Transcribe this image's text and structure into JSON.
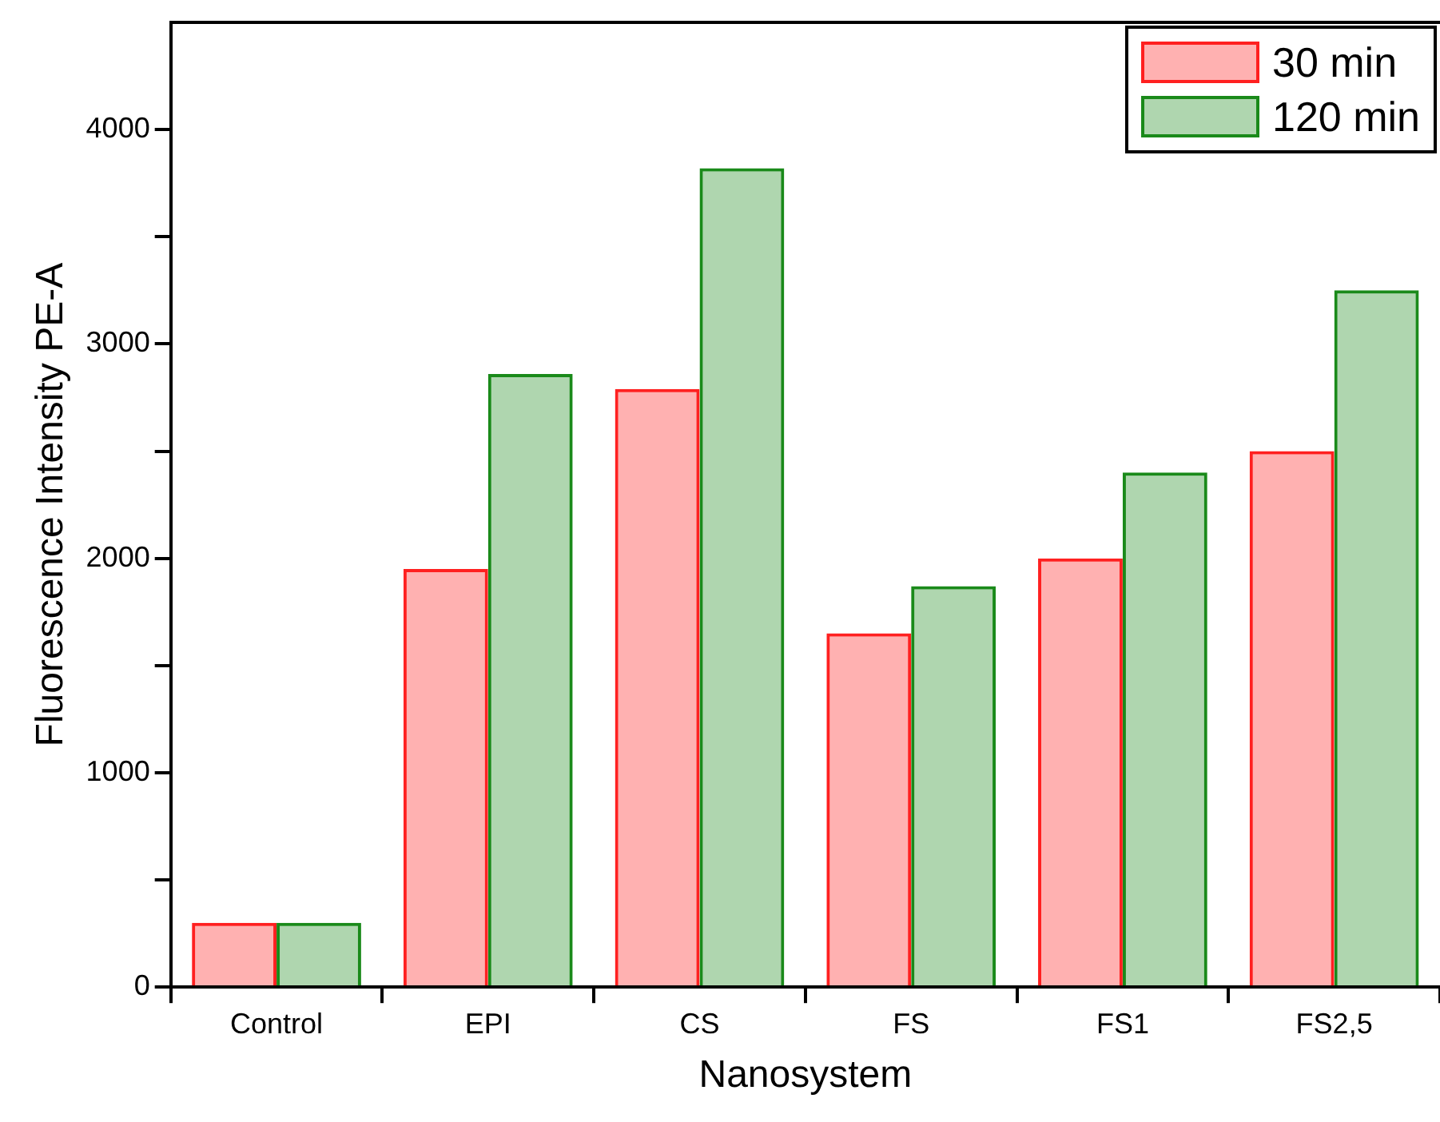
{
  "chart_data": {
    "type": "bar",
    "xlabel": "Nanosystem",
    "ylabel": "Fluorescence Intensity PE-A",
    "categories": [
      "Control",
      "EPI",
      "CS",
      "FS",
      "FS1",
      "FS2,5"
    ],
    "series": [
      {
        "name": "30 min",
        "color": "#ff2020",
        "values": [
          300,
          1950,
          2790,
          1650,
          2000,
          2500
        ]
      },
      {
        "name": "120 min",
        "color": "#1a8a1a",
        "values": [
          300,
          2860,
          3820,
          1870,
          2400,
          3250
        ]
      }
    ],
    "ylim": [
      0,
      4500
    ],
    "yticks": [
      0,
      {
        "value": 500,
        "label": null
      },
      1000,
      {
        "value": 1500,
        "label": null
      },
      2000,
      {
        "value": 2500,
        "label": null
      },
      3000,
      {
        "value": 3500,
        "label": null
      },
      4000
    ],
    "grid": false,
    "legend": "top right"
  }
}
